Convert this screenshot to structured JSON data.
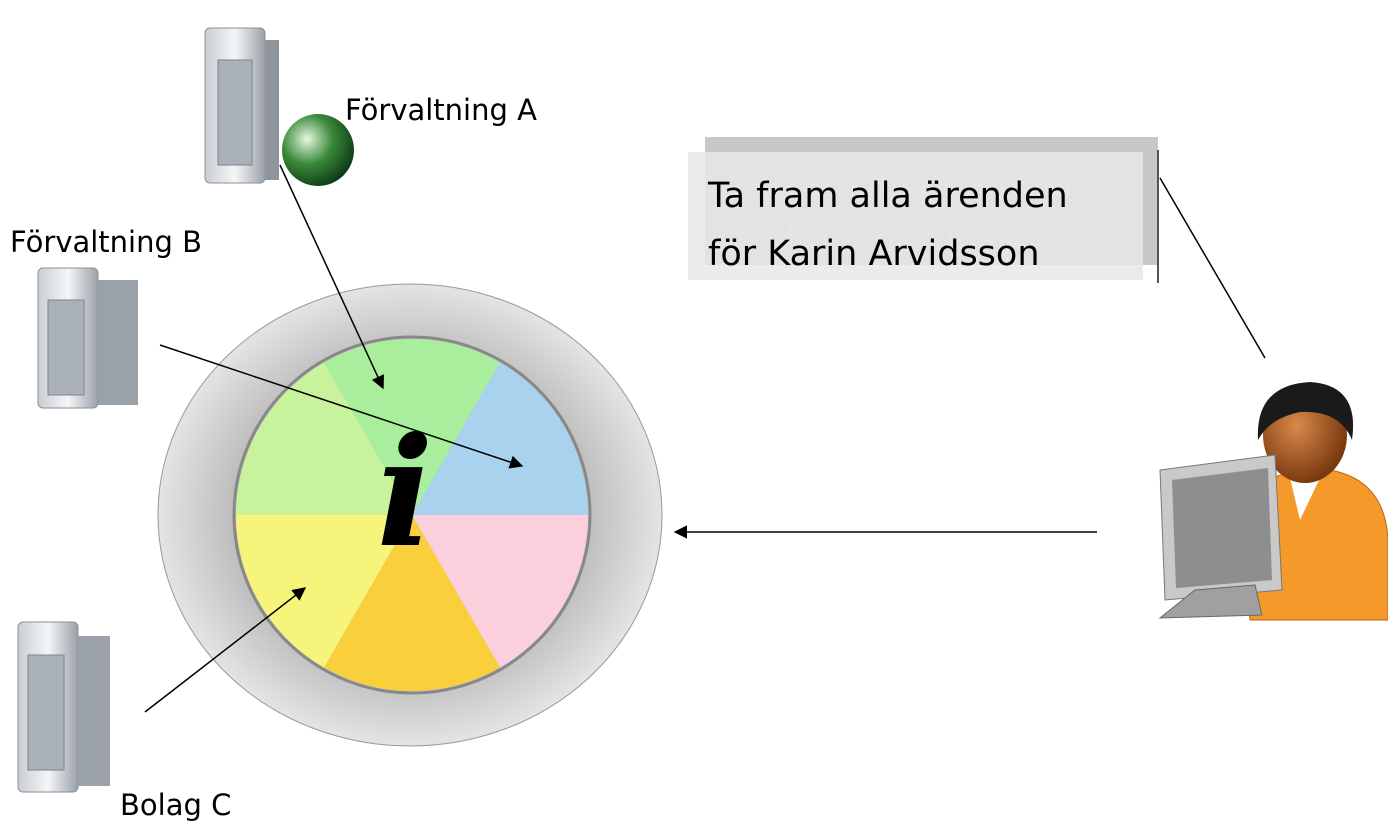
{
  "nodes": [
    {
      "label": "Förvaltning A"
    },
    {
      "label": "Förvaltning B"
    },
    {
      "label": "Bolag C"
    }
  ],
  "hub": {
    "symbol": "i"
  },
  "query": {
    "lines": [
      "Ta fram alla ärenden",
      "för Karin Arvidsson"
    ]
  }
}
